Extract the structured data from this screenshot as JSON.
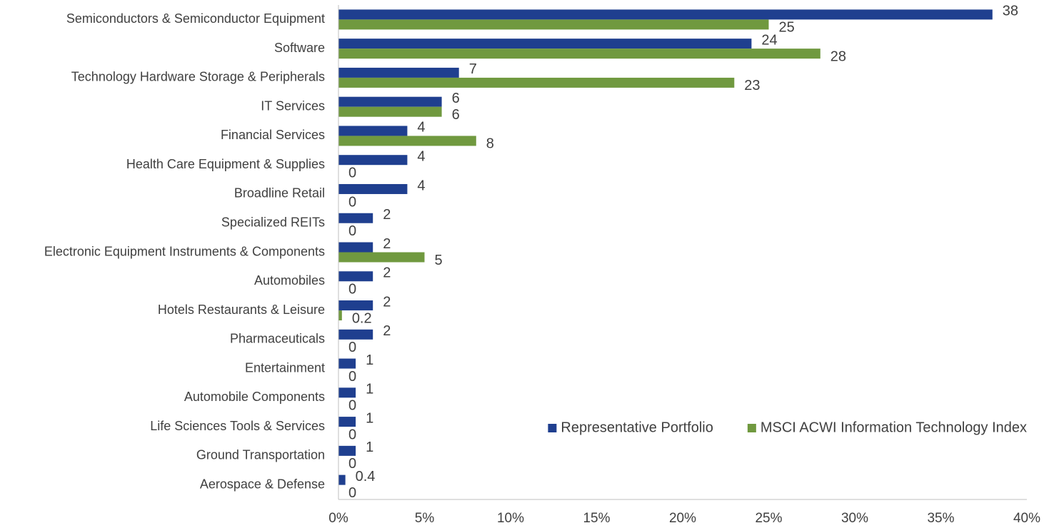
{
  "chart_data": {
    "type": "hbar",
    "categories": [
      "Semiconductors & Semiconductor Equipment",
      "Software",
      "Technology Hardware Storage & Peripherals",
      "IT Services",
      "Financial Services",
      "Health Care Equipment & Supplies",
      "Broadline Retail",
      "Specialized REITs",
      "Electronic Equipment Instruments & Components",
      "Automobiles",
      "Hotels Restaurants & Leisure",
      "Pharmaceuticals",
      "Entertainment",
      "Automobile Components",
      "Life Sciences Tools & Services",
      "Ground Transportation",
      "Aerospace & Defense"
    ],
    "series": [
      {
        "name": "Representative Portfolio",
        "color": "#1f3f8f",
        "values": [
          38,
          24,
          7,
          6,
          4,
          4,
          4,
          2,
          2,
          2,
          2,
          2,
          1,
          1,
          1,
          1,
          0.4
        ]
      },
      {
        "name": "MSCI ACWI Information Technology Index",
        "color": "#70993f",
        "values": [
          25,
          28,
          23,
          6,
          8,
          0,
          0,
          0,
          5,
          0,
          0.2,
          0,
          0,
          0,
          0,
          0,
          0
        ]
      }
    ],
    "xlim": [
      0,
      40
    ],
    "xticks": [
      {
        "value": 0,
        "label": "0%"
      },
      {
        "value": 5,
        "label": "5%"
      },
      {
        "value": 10,
        "label": "10%"
      },
      {
        "value": 15,
        "label": "15%"
      },
      {
        "value": 20,
        "label": "20%"
      },
      {
        "value": 25,
        "label": "25%"
      },
      {
        "value": 30,
        "label": "30%"
      },
      {
        "value": 35,
        "label": "35%"
      },
      {
        "value": 40,
        "label": "40%"
      }
    ],
    "legend": "lower right"
  }
}
